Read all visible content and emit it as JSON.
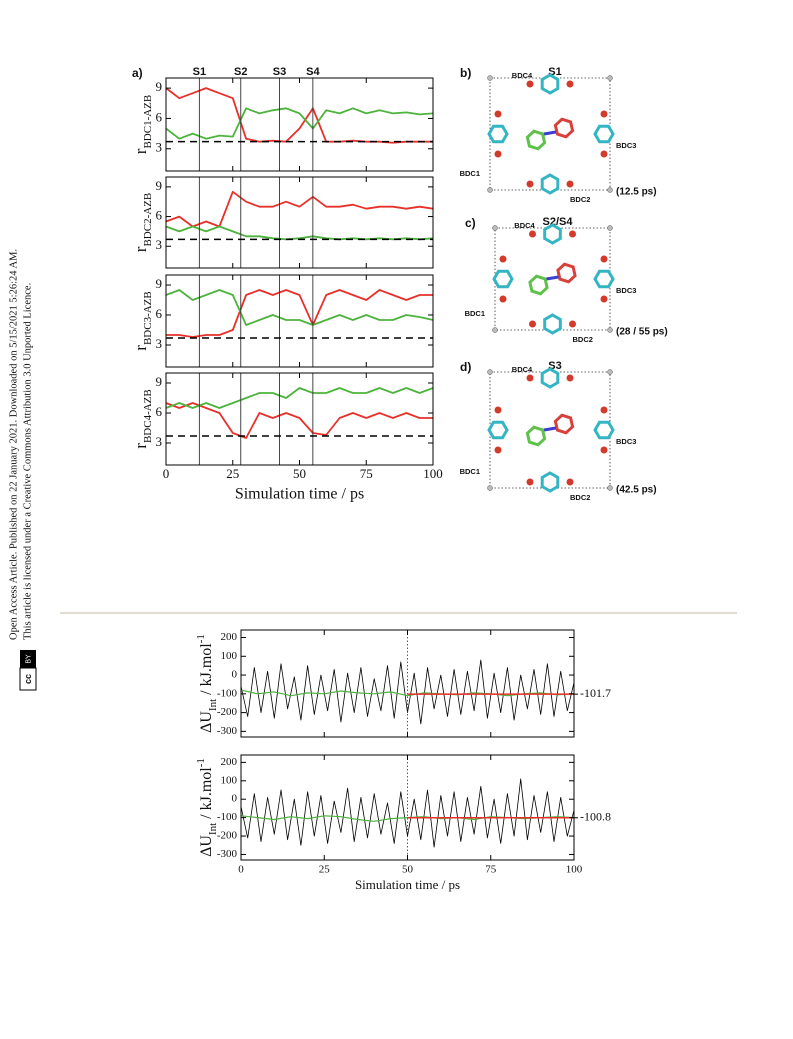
{
  "side_notice": {
    "lines": [
      "Open Access Article. Published on 22 January 2021. Downloaded on 5/15/2021 5:26:24 AM.",
      "This article is licensed under a Creative Commons Attribution 3.0 Unported Licence."
    ],
    "badge": [
      "cc",
      "BY"
    ]
  },
  "chart_data": [
    {
      "type": "line",
      "panel_label": "a)",
      "ylabel": {
        "main": "r",
        "sub": "BDC1-AZB"
      },
      "xlim": [
        0,
        100
      ],
      "ylim": [
        0.8,
        10
      ],
      "yticks": [
        3,
        6,
        9
      ],
      "vlines": [
        12.5,
        28,
        42.5,
        55
      ],
      "vline_labels": [
        "S1",
        "S2",
        "S3",
        "S4"
      ],
      "hline": 3.7,
      "x": [
        0,
        5,
        10,
        15,
        20,
        25,
        30,
        35,
        40,
        45,
        50,
        55,
        60,
        65,
        70,
        75,
        80,
        85,
        90,
        95,
        100
      ],
      "series": [
        {
          "color": "#e8302a",
          "values": [
            9,
            8,
            8.5,
            9,
            8.5,
            8,
            4,
            3.7,
            3.8,
            3.7,
            5,
            7,
            3.7,
            3.7,
            3.8,
            3.7,
            3.7,
            3.6,
            3.7,
            3.7,
            3.7
          ]
        },
        {
          "color": "#4db33d",
          "values": [
            5,
            4,
            4.5,
            4,
            4.3,
            4.2,
            7,
            6.5,
            6.8,
            7,
            6.5,
            5,
            6.8,
            6.5,
            7,
            6.5,
            6.8,
            6.5,
            6.6,
            6.4,
            6.5
          ]
        }
      ]
    },
    {
      "type": "line",
      "ylabel": {
        "main": "r",
        "sub": "BDC2-AZB"
      },
      "xlim": [
        0,
        100
      ],
      "ylim": [
        0.8,
        10
      ],
      "yticks": [
        3,
        6,
        9
      ],
      "vlines": [
        12.5,
        28,
        42.5,
        55
      ],
      "hline": 3.7,
      "x": [
        0,
        5,
        10,
        15,
        20,
        25,
        30,
        35,
        40,
        45,
        50,
        55,
        60,
        65,
        70,
        75,
        80,
        85,
        90,
        95,
        100
      ],
      "series": [
        {
          "color": "#e8302a",
          "values": [
            5.5,
            6,
            5,
            5.5,
            5,
            8.5,
            7.5,
            7,
            7,
            7.5,
            7,
            8,
            7,
            7,
            7.2,
            6.8,
            7,
            7,
            6.8,
            7,
            6.8
          ]
        },
        {
          "color": "#4db33d",
          "values": [
            5,
            4.5,
            5,
            4.5,
            5,
            4.5,
            4,
            4,
            3.8,
            3.7,
            3.8,
            4,
            3.8,
            3.7,
            3.8,
            3.7,
            3.8,
            3.7,
            3.8,
            3.7,
            3.8
          ]
        }
      ]
    },
    {
      "type": "line",
      "ylabel": {
        "main": "r",
        "sub": "BDC3-AZB"
      },
      "xlim": [
        0,
        100
      ],
      "ylim": [
        0.8,
        10
      ],
      "yticks": [
        3,
        6,
        9
      ],
      "vlines": [
        12.5,
        28,
        42.5,
        55
      ],
      "hline": 3.7,
      "x": [
        0,
        5,
        10,
        15,
        20,
        25,
        30,
        35,
        40,
        45,
        50,
        55,
        60,
        65,
        70,
        75,
        80,
        85,
        90,
        95,
        100
      ],
      "series": [
        {
          "color": "#e8302a",
          "values": [
            4,
            4,
            3.8,
            4,
            4,
            4.5,
            8,
            8.5,
            8,
            8.5,
            8,
            5,
            8,
            8.5,
            8,
            7.5,
            8.5,
            8,
            7.5,
            8,
            8
          ]
        },
        {
          "color": "#4db33d",
          "values": [
            8,
            8.5,
            7.5,
            8,
            8.5,
            8,
            5,
            5.5,
            6,
            5.5,
            5.5,
            5,
            5.5,
            6,
            5.5,
            6,
            5.5,
            5.5,
            6,
            5.8,
            5.5
          ]
        }
      ]
    },
    {
      "type": "line",
      "ylabel": {
        "main": "r",
        "sub": "BDC4-AZB"
      },
      "xlabel": "Simulation time / ps",
      "xlim": [
        0,
        100
      ],
      "ylim": [
        0.8,
        10
      ],
      "yticks": [
        3,
        6,
        9
      ],
      "xticks": [
        0,
        25,
        50,
        75,
        100
      ],
      "vlines": [
        12.5,
        28,
        42.5,
        55
      ],
      "hline": 3.7,
      "x": [
        0,
        5,
        10,
        15,
        20,
        25,
        30,
        35,
        40,
        45,
        50,
        55,
        60,
        65,
        70,
        75,
        80,
        85,
        90,
        95,
        100
      ],
      "series": [
        {
          "color": "#e8302a",
          "values": [
            7,
            6.5,
            7,
            6.5,
            6,
            4,
            3.5,
            6,
            5.5,
            6,
            5.5,
            4,
            3.8,
            5.5,
            6,
            5.5,
            6,
            5.5,
            6,
            5.5,
            5.5
          ]
        },
        {
          "color": "#4db33d",
          "values": [
            6.5,
            7,
            6.5,
            7,
            6.5,
            7,
            7.5,
            8,
            8,
            7.5,
            8.5,
            8,
            8,
            8.5,
            8,
            8,
            8.5,
            8,
            8.5,
            8,
            8.5
          ]
        }
      ]
    },
    {
      "type": "line",
      "ylabel": {
        "main": "ΔU",
        "sub": "Int",
        "rest": " / kJ.mol",
        "sup": "-1"
      },
      "xlim": [
        0,
        100
      ],
      "ylim": [
        -330,
        240
      ],
      "yticks": [
        200,
        100,
        0,
        -100,
        -200,
        -300
      ],
      "vline": 50,
      "mean": -101.7,
      "mean_color": "#e8302a",
      "series": [
        {
          "color": "#000000",
          "x": [
            0,
            2,
            4,
            6,
            8,
            10,
            12,
            14,
            16,
            18,
            20,
            22,
            24,
            26,
            28,
            30,
            32,
            34,
            36,
            38,
            40,
            42,
            44,
            46,
            48,
            50,
            52,
            54,
            56,
            58,
            60,
            62,
            64,
            66,
            68,
            70,
            72,
            74,
            76,
            78,
            80,
            82,
            84,
            86,
            88,
            90,
            92,
            94,
            96,
            98,
            100
          ],
          "values": [
            -60,
            -220,
            40,
            -200,
            20,
            -230,
            60,
            -180,
            -10,
            -240,
            50,
            -210,
            0,
            -190,
            30,
            -250,
            10,
            -200,
            40,
            -220,
            -20,
            -190,
            50,
            -230,
            70,
            -200,
            10,
            -260,
            40,
            -180,
            0,
            -220,
            30,
            -210,
            20,
            -190,
            80,
            -230,
            10,
            -200,
            40,
            -240,
            0,
            -180,
            30,
            -210,
            60,
            -220,
            20,
            -190,
            -40
          ]
        },
        {
          "color": "#4db33d",
          "x": [
            0,
            5,
            10,
            15,
            20,
            25,
            30,
            35,
            40,
            45,
            50,
            55,
            60,
            65,
            70,
            75,
            80,
            85,
            90,
            95,
            100
          ],
          "values": [
            -80,
            -100,
            -90,
            -110,
            -95,
            -100,
            -85,
            -95,
            -100,
            -90,
            -110,
            -95,
            -100,
            -105,
            -95,
            -100,
            -110,
            -100,
            -95,
            -105,
            -100
          ]
        }
      ]
    },
    {
      "type": "line",
      "ylabel": {
        "main": "ΔU",
        "sub": "Int",
        "rest": " / kJ.mol",
        "sup": "-1"
      },
      "xlabel": "Simulation time / ps",
      "xlim": [
        0,
        100
      ],
      "ylim": [
        -330,
        240
      ],
      "yticks": [
        200,
        100,
        0,
        -100,
        -200,
        -300
      ],
      "xticks": [
        0,
        25,
        50,
        75,
        100
      ],
      "vline": 50,
      "mean": -100.8,
      "mean_color": "#e8302a",
      "series": [
        {
          "color": "#000000",
          "x": [
            0,
            2,
            4,
            6,
            8,
            10,
            12,
            14,
            16,
            18,
            20,
            22,
            24,
            26,
            28,
            30,
            32,
            34,
            36,
            38,
            40,
            42,
            44,
            46,
            48,
            50,
            52,
            54,
            56,
            58,
            60,
            62,
            64,
            66,
            68,
            70,
            72,
            74,
            76,
            78,
            80,
            82,
            84,
            86,
            88,
            90,
            92,
            94,
            96,
            98,
            100
          ],
          "values": [
            -40,
            -210,
            30,
            -230,
            10,
            -190,
            50,
            -220,
            0,
            -250,
            40,
            -200,
            20,
            -240,
            -10,
            -180,
            60,
            -230,
            10,
            -210,
            30,
            -190,
            -20,
            -240,
            40,
            -200,
            0,
            -220,
            50,
            -260,
            20,
            -200,
            40,
            -230,
            10,
            -190,
            70,
            -210,
            0,
            -240,
            30,
            -200,
            110,
            -220,
            20,
            -180,
            40,
            -230,
            10,
            -200,
            -60
          ]
        },
        {
          "color": "#4db33d",
          "x": [
            0,
            5,
            10,
            15,
            20,
            25,
            30,
            35,
            40,
            45,
            50,
            55,
            60,
            65,
            70,
            75,
            80,
            85,
            90,
            95,
            100
          ],
          "values": [
            -90,
            -100,
            -110,
            -95,
            -105,
            -90,
            -95,
            -110,
            -120,
            -105,
            -100,
            -95,
            -105,
            -100,
            -110,
            -95,
            -100,
            -105,
            -100,
            -95,
            -100
          ]
        }
      ]
    }
  ],
  "panels": [
    {
      "label": "b)",
      "state": "S1",
      "time": "(12.5 ps)",
      "names": [
        "BDC4",
        "BDC1",
        "BDC2",
        "BDC3"
      ]
    },
    {
      "label": "c)",
      "state": "S2/S4",
      "time": "(28 / 55 ps)",
      "names": [
        "BDC4",
        "BDC1",
        "BDC2",
        "BDC3"
      ]
    },
    {
      "label": "d)",
      "state": "S3",
      "time": "(42.5 ps)",
      "names": [
        "BDC4",
        "BDC1",
        "BDC2",
        "BDC3"
      ]
    }
  ]
}
